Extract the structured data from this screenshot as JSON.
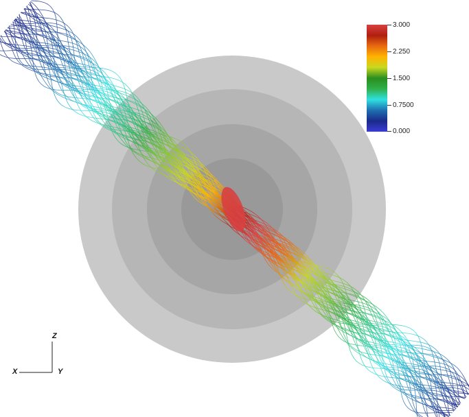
{
  "colorbar": {
    "labels": [
      "3.000",
      "2.250",
      "1.500",
      "0.7500",
      "0.000"
    ],
    "range": [
      0,
      3
    ],
    "colors": [
      "#3b3bd4",
      "#1a2a8a",
      "#1f6fb0",
      "#2fe0e0",
      "#2fb04a",
      "#2a8f1f",
      "#c8d820",
      "#ffb400",
      "#e86a10",
      "#b01e10",
      "#d84040"
    ]
  },
  "orientation_axes": {
    "x_label": "X",
    "y_label": "Y",
    "z_label": "Z"
  },
  "scene": {
    "sphere_shell_colors": [
      "#c8c8c8",
      "#b8b8b8",
      "#a9a9a9",
      "#9c9c9c"
    ],
    "object": "streamlines"
  }
}
